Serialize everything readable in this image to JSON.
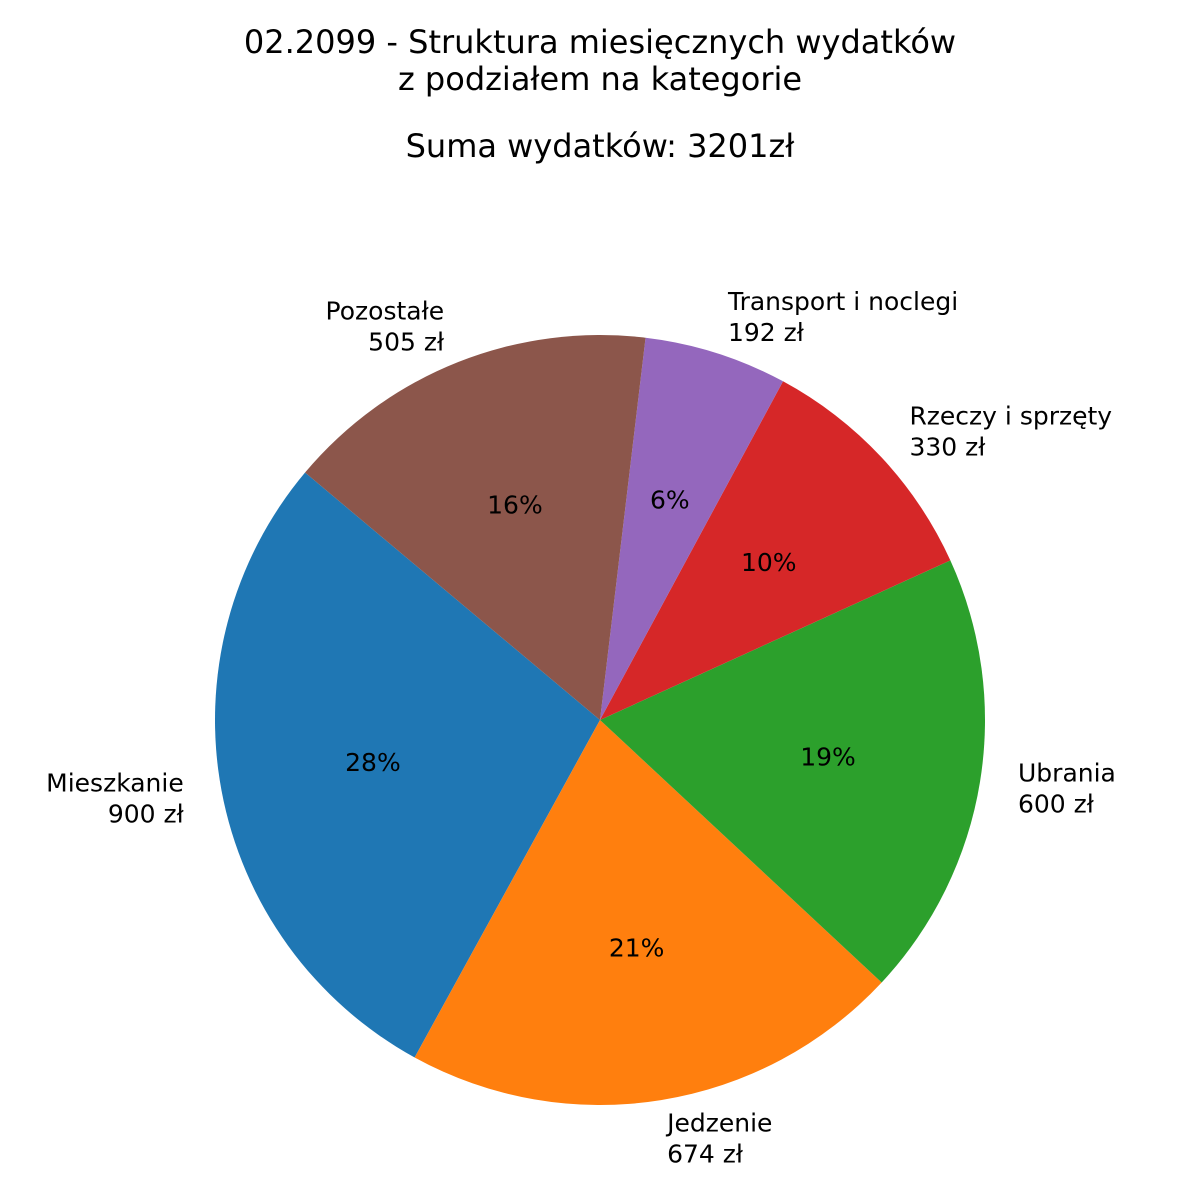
{
  "chart_data": {
    "type": "pie",
    "title": "02.2099 - Struktura miesięcznych wydatków",
    "subtitle": "z podziałem na kategorie",
    "summary": "Suma wydatków: 3201zł",
    "total": 3201,
    "slices": [
      {
        "name": "Mieszkanie",
        "value": 900,
        "value_label": "900 zł",
        "pct_label": "28%",
        "color": "#1f77b4"
      },
      {
        "name": "Jedzenie",
        "value": 674,
        "value_label": "674 zł",
        "pct_label": "21%",
        "color": "#ff7f0e"
      },
      {
        "name": "Ubrania",
        "value": 600,
        "value_label": "600 zł",
        "pct_label": "19%",
        "color": "#2ca02c"
      },
      {
        "name": "Rzeczy i sprzęty",
        "value": 330,
        "value_label": "330 zł",
        "pct_label": "10%",
        "color": "#d62728"
      },
      {
        "name": "Transport i noclegi",
        "value": 192,
        "value_label": "192 zł",
        "pct_label": "6%",
        "color": "#9467bd"
      },
      {
        "name": "Pozostałe",
        "value": 505,
        "value_label": "505 zł",
        "pct_label": "16%",
        "color": "#8c564b"
      }
    ]
  }
}
